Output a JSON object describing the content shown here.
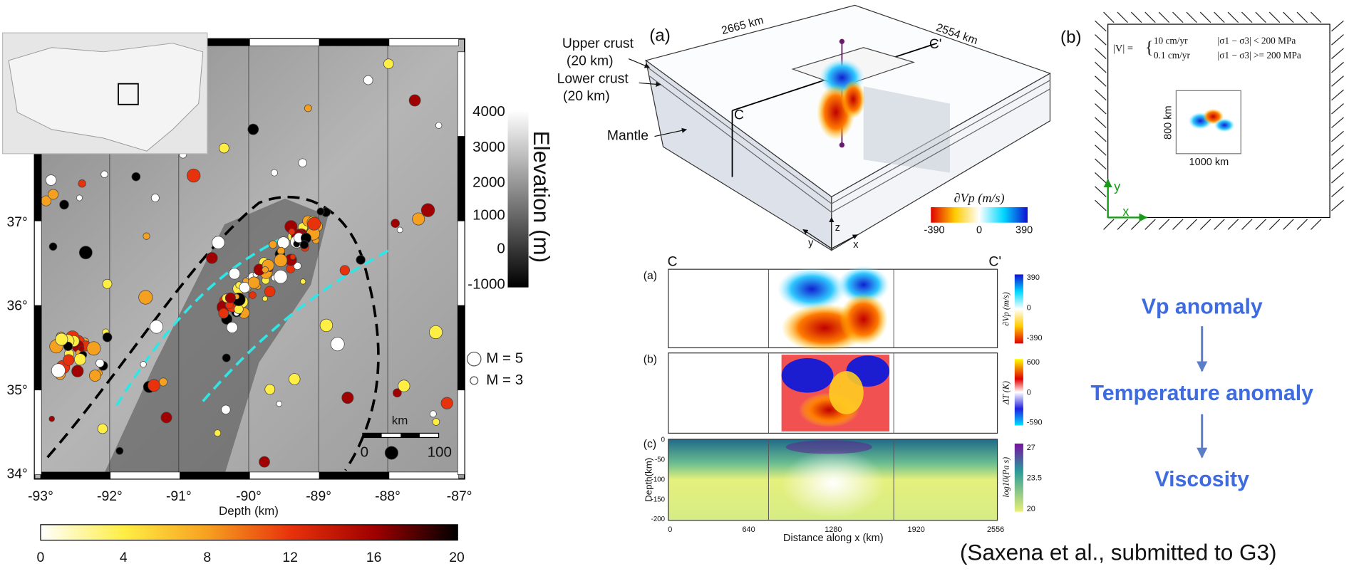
{
  "map": {
    "lat_ticks": [
      "34°",
      "35°",
      "36°",
      "37°"
    ],
    "lon_ticks": [
      "-93°",
      "-92°",
      "-91°",
      "-90°",
      "-89°",
      "-88°",
      "-87°"
    ],
    "x_label": "Depth (km)",
    "elevation_ticks": [
      4000,
      3000,
      2000,
      1000,
      0,
      -1000
    ],
    "elevation_label": "Elevation (m)",
    "magnitude_legend": [
      "M = 5",
      "M = 3"
    ],
    "scale_bar": {
      "unit": "km",
      "start": 0,
      "end": 100
    },
    "depth_colorbar_ticks": [
      0,
      4,
      8,
      12,
      16,
      20
    ]
  },
  "model_3d": {
    "panel": "(a)",
    "layers": [
      "Upper crust",
      "(20 km)",
      "Lower crust",
      "(20 km)",
      "Mantle"
    ],
    "dimensions": [
      "2665 km",
      "2554 km"
    ],
    "section_ends": [
      "C",
      "C'"
    ],
    "colorbar_title": "∂Vp  (m/s)",
    "colorbar_ticks": [
      -390,
      0,
      390
    ],
    "axes": [
      "x",
      "y",
      "z"
    ]
  },
  "boundary": {
    "panel": "(b)",
    "formula_lhs": "|V| =",
    "rows": [
      [
        "10 cm/yr",
        "|σ1 − σ3| < 200 MPa"
      ],
      [
        "0.1 cm/yr",
        "|σ1 − σ3| >= 200 MPa"
      ]
    ],
    "inner_height": "800 km",
    "inner_width": "1000 km",
    "axes": [
      "x",
      "y"
    ]
  },
  "sections": {
    "ends": [
      "C",
      "C'"
    ],
    "panels": [
      {
        "label": "(a)",
        "colorbar_title": "∂Vp  (m/s)",
        "colorbar_ticks": [
          390,
          0,
          -390
        ]
      },
      {
        "label": "(b)",
        "colorbar_title": "ΔT  (K)",
        "colorbar_ticks": [
          600,
          0,
          -590
        ]
      },
      {
        "label": "(c)",
        "colorbar_title": "log10(Pa s)",
        "colorbar_ticks": [
          27,
          23.5,
          20
        ]
      }
    ],
    "depth_ticks": [
      0,
      -50,
      -100,
      -150,
      -200
    ],
    "depth_label": "Depth(km)",
    "distance_ticks": [
      0,
      640,
      1280,
      1920,
      2556
    ],
    "distance_label": "Distance along x (km)"
  },
  "flow": [
    "Vp anomaly",
    "Temperature anomaly",
    "Viscosity"
  ],
  "citation": "(Saxena et al., submitted to G3)"
}
